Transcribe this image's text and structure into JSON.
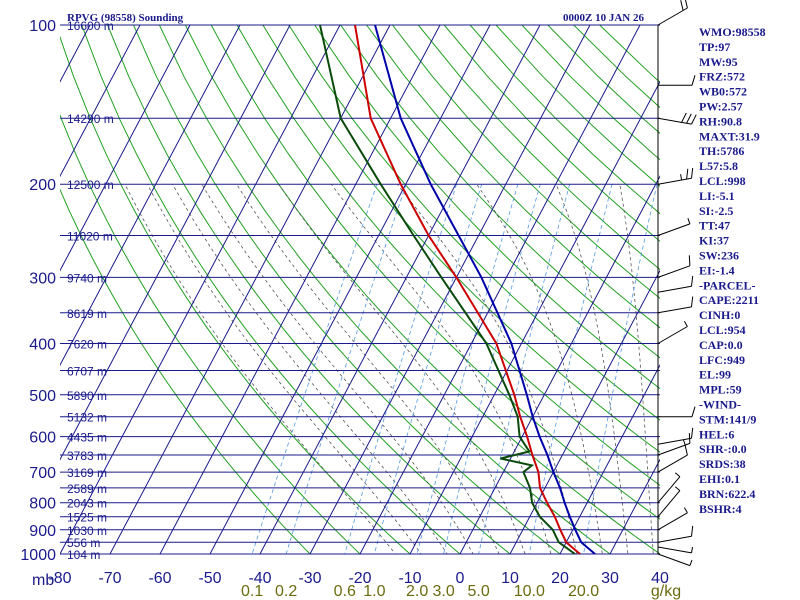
{
  "header": {
    "station_title": "RPVG (98558) Sounding",
    "valid_time": "0000Z 10 JAN 26"
  },
  "axis": {
    "corner_label": "mb",
    "mixing_ratio_unit": "g/kg"
  },
  "chart_data": {
    "type": "skew-t log-p sounding",
    "pressure_levels_mb": [
      100,
      200,
      300,
      400,
      500,
      600,
      700,
      800,
      900,
      1000
    ],
    "pressure_tick_labels": [
      "100",
      "200",
      "300",
      "400",
      "500",
      "600",
      "700",
      "800",
      "900",
      "1000"
    ],
    "temperature_ticks_c": [
      -80,
      -70,
      -60,
      -50,
      -40,
      -30,
      -20,
      -10,
      0,
      10,
      20,
      30,
      40
    ],
    "temperature_tick_labels": [
      "-80",
      "-70",
      "-60",
      "-50",
      "-40",
      "-30",
      "-20",
      "-10",
      "0",
      "10",
      "20",
      "30",
      "40"
    ],
    "height_labels": [
      {
        "p": 100,
        "label": "16600 m"
      },
      {
        "p": 150,
        "label": "14290 m"
      },
      {
        "p": 200,
        "label": "12500 m"
      },
      {
        "p": 250,
        "label": "11020 m"
      },
      {
        "p": 300,
        "label": "9740 m"
      },
      {
        "p": 350,
        "label": "8619 m"
      },
      {
        "p": 400,
        "label": "7620 m"
      },
      {
        "p": 450,
        "label": "6707 m"
      },
      {
        "p": 500,
        "label": "5890 m"
      },
      {
        "p": 550,
        "label": "5132 m"
      },
      {
        "p": 600,
        "label": "4435 m"
      },
      {
        "p": 650,
        "label": "3783 m"
      },
      {
        "p": 700,
        "label": "3169 m"
      },
      {
        "p": 750,
        "label": "2589 m"
      },
      {
        "p": 800,
        "label": "2043 m"
      },
      {
        "p": 850,
        "label": "1525 m"
      },
      {
        "p": 900,
        "label": "1030 m"
      },
      {
        "p": 950,
        "label": "556 m"
      },
      {
        "p": 1000,
        "label": "104 m"
      }
    ],
    "mixing_ratio_labels": [
      {
        "w": 0.1,
        "label": "0.1"
      },
      {
        "w": 0.2,
        "label": "0.2"
      },
      {
        "w": 0.6,
        "label": "0.6"
      },
      {
        "w": 1.0,
        "label": "1.0"
      },
      {
        "w": 2.0,
        "label": "2.0"
      },
      {
        "w": 3.0,
        "label": "3.0"
      },
      {
        "w": 5.0,
        "label": "5.0"
      },
      {
        "w": 10.0,
        "label": "10.0"
      },
      {
        "w": 20.0,
        "label": "20.0"
      }
    ],
    "temperature_profile": [
      {
        "p": 1000,
        "t": 24
      },
      {
        "p": 950,
        "t": 20
      },
      {
        "p": 900,
        "t": 17.5
      },
      {
        "p": 850,
        "t": 15
      },
      {
        "p": 800,
        "t": 12
      },
      {
        "p": 750,
        "t": 9
      },
      {
        "p": 700,
        "t": 7
      },
      {
        "p": 650,
        "t": 4
      },
      {
        "p": 600,
        "t": 1
      },
      {
        "p": 550,
        "t": -2.5
      },
      {
        "p": 500,
        "t": -6
      },
      {
        "p": 400,
        "t": -15
      },
      {
        "p": 300,
        "t": -30
      },
      {
        "p": 250,
        "t": -40
      },
      {
        "p": 200,
        "t": -51
      },
      {
        "p": 150,
        "t": -64
      },
      {
        "p": 100,
        "t": -77
      }
    ],
    "dewpoint_profile": [
      {
        "p": 1000,
        "t": 23
      },
      {
        "p": 950,
        "t": 18.5
      },
      {
        "p": 900,
        "t": 16
      },
      {
        "p": 850,
        "t": 12
      },
      {
        "p": 800,
        "t": 9
      },
      {
        "p": 750,
        "t": 7
      },
      {
        "p": 700,
        "t": 4
      },
      {
        "p": 680,
        "t": 5
      },
      {
        "p": 660,
        "t": -2
      },
      {
        "p": 640,
        "t": 3
      },
      {
        "p": 600,
        "t": -0.5
      },
      {
        "p": 550,
        "t": -3
      },
      {
        "p": 500,
        "t": -7
      },
      {
        "p": 400,
        "t": -17
      },
      {
        "p": 300,
        "t": -33
      },
      {
        "p": 250,
        "t": -43
      },
      {
        "p": 200,
        "t": -55
      },
      {
        "p": 150,
        "t": -70
      },
      {
        "p": 100,
        "t": -84
      }
    ],
    "parcel_path": [
      {
        "p": 1000,
        "t": 27
      },
      {
        "p": 950,
        "t": 23
      },
      {
        "p": 900,
        "t": 20.5
      },
      {
        "p": 850,
        "t": 18
      },
      {
        "p": 800,
        "t": 15.5
      },
      {
        "p": 750,
        "t": 13
      },
      {
        "p": 700,
        "t": 10
      },
      {
        "p": 650,
        "t": 7
      },
      {
        "p": 600,
        "t": 3.5
      },
      {
        "p": 550,
        "t": 0
      },
      {
        "p": 500,
        "t": -3.5
      },
      {
        "p": 400,
        "t": -12
      },
      {
        "p": 300,
        "t": -25
      },
      {
        "p": 250,
        "t": -34
      },
      {
        "p": 200,
        "t": -45
      },
      {
        "p": 150,
        "t": -58
      },
      {
        "p": 100,
        "t": -73
      }
    ],
    "wind_barbs": [
      {
        "p": 1000,
        "dir": 110,
        "spd": 5
      },
      {
        "p": 970,
        "dir": 100,
        "spd": 5
      },
      {
        "p": 950,
        "dir": 80,
        "spd": 10
      },
      {
        "p": 900,
        "dir": 60,
        "spd": 5
      },
      {
        "p": 850,
        "dir": 40,
        "spd": 5
      },
      {
        "p": 800,
        "dir": 40,
        "spd": 5
      },
      {
        "p": 700,
        "dir": 60,
        "spd": 10
      },
      {
        "p": 650,
        "dir": 70,
        "spd": 15
      },
      {
        "p": 620,
        "dir": 80,
        "spd": 10
      },
      {
        "p": 550,
        "dir": 90,
        "spd": 10
      },
      {
        "p": 400,
        "dir": 60,
        "spd": 5
      },
      {
        "p": 350,
        "dir": 80,
        "spd": 10
      },
      {
        "p": 320,
        "dir": 80,
        "spd": 10
      },
      {
        "p": 300,
        "dir": 70,
        "spd": 10
      },
      {
        "p": 250,
        "dir": 70,
        "spd": 5
      },
      {
        "p": 200,
        "dir": 80,
        "spd": 25
      },
      {
        "p": 150,
        "dir": 100,
        "spd": 30
      },
      {
        "p": 130,
        "dir": 90,
        "spd": 10
      },
      {
        "p": 100,
        "dir": 60,
        "spd": 20
      }
    ]
  },
  "indices": [
    {
      "label": "WMO:98558"
    },
    {
      "label": "TP:97"
    },
    {
      "label": "MW:95"
    },
    {
      "label": "FRZ:572"
    },
    {
      "label": "WB0:572"
    },
    {
      "label": "PW:2.57"
    },
    {
      "label": "RH:90.8"
    },
    {
      "label": "MAXT:31.9"
    },
    {
      "label": "TH:5786"
    },
    {
      "label": "L57:5.8"
    },
    {
      "label": "LCL:998"
    },
    {
      "label": "LI:-5.1"
    },
    {
      "label": "SI:-2.5"
    },
    {
      "label": "TT:47"
    },
    {
      "label": "KI:37"
    },
    {
      "label": "SW:236"
    },
    {
      "label": "EI:-1.4"
    },
    {
      "label": "-PARCEL-"
    },
    {
      "label": "CAPE:2211"
    },
    {
      "label": "CINH:0"
    },
    {
      "label": "LCL:954"
    },
    {
      "label": "CAP:0.0"
    },
    {
      "label": "LFC:949"
    },
    {
      "label": "EL:99"
    },
    {
      "label": "MPL:59"
    },
    {
      "label": "-WIND-"
    },
    {
      "label": "STM:141/9"
    },
    {
      "label": "HEL:6"
    },
    {
      "label": "SHR-:0.0"
    },
    {
      "label": "SRDS:38"
    },
    {
      "label": "EHI:0.1"
    },
    {
      "label": "BRN:622.4"
    },
    {
      "label": "BSHR:4"
    }
  ],
  "colors": {
    "grid": "#1a1a8c",
    "dry_adiabat": "#22a022",
    "moist_adiabat": "#555555",
    "mixing_ratio": "#5599dd",
    "temperature": "#cc0000",
    "dewpoint": "#0a4a0a",
    "parcel": "#0000aa",
    "label": "#1a1a8c",
    "mixing_label": "#6b6b10"
  }
}
